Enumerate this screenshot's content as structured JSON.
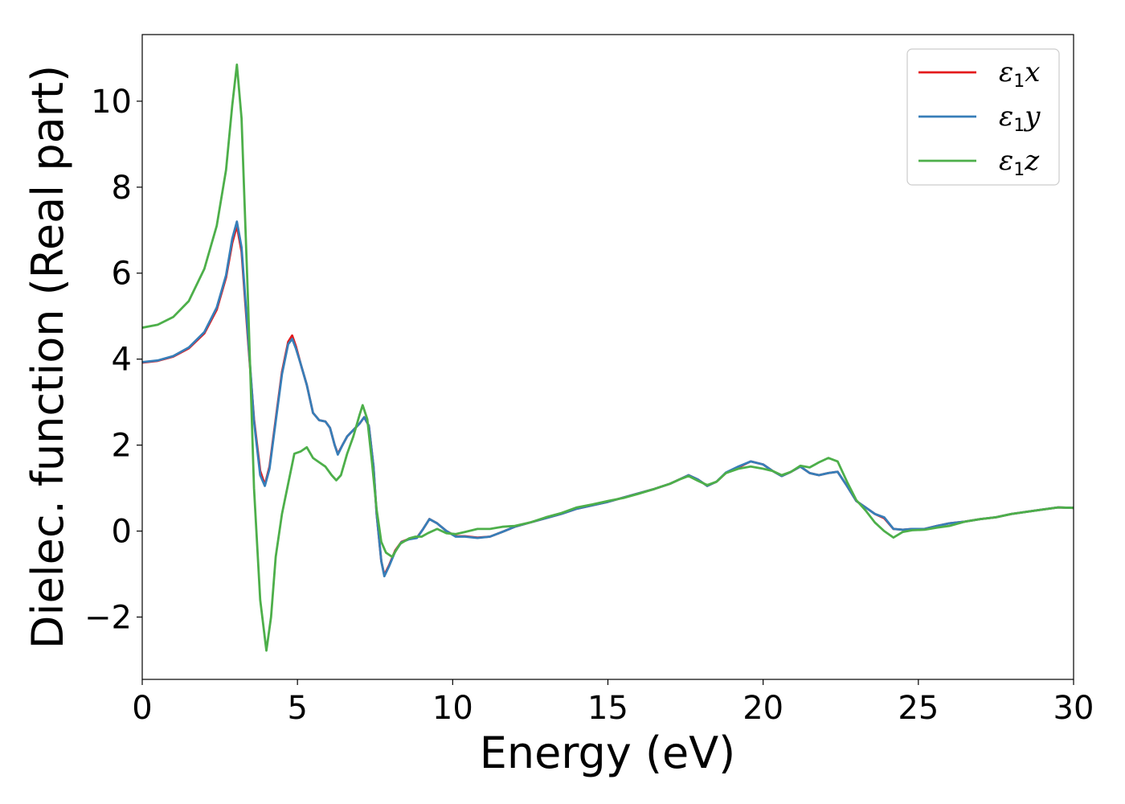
{
  "chart_data": {
    "type": "line",
    "title": "",
    "xlabel": "Energy (eV)",
    "ylabel": "Dielec. function (Real part)",
    "xlim": [
      0,
      30
    ],
    "ylim": [
      -3.45,
      11.55
    ],
    "xticks": [
      0,
      5,
      10,
      15,
      20,
      25,
      30
    ],
    "xtick_labels": [
      "0",
      "5",
      "10",
      "15",
      "20",
      "25",
      "30"
    ],
    "yticks": [
      -2,
      0,
      2,
      4,
      6,
      8,
      10
    ],
    "ytick_labels": [
      "−2",
      "0",
      "2",
      "4",
      "6",
      "8",
      "10"
    ],
    "grid": false,
    "legend_position": "top-right",
    "series": [
      {
        "name": "x",
        "legend": {
          "base": "ε",
          "sub": "1",
          "suffix": "x"
        },
        "color": "#e41a1c",
        "points": [
          [
            0,
            3.92
          ],
          [
            0.5,
            3.96
          ],
          [
            1,
            4.06
          ],
          [
            1.5,
            4.25
          ],
          [
            2,
            4.6
          ],
          [
            2.4,
            5.15
          ],
          [
            2.7,
            5.9
          ],
          [
            2.9,
            6.7
          ],
          [
            3.05,
            7.1
          ],
          [
            3.2,
            6.5
          ],
          [
            3.4,
            4.5
          ],
          [
            3.6,
            2.6
          ],
          [
            3.8,
            1.4
          ],
          [
            3.95,
            1.08
          ],
          [
            4.1,
            1.5
          ],
          [
            4.3,
            2.6
          ],
          [
            4.5,
            3.7
          ],
          [
            4.7,
            4.4
          ],
          [
            4.83,
            4.55
          ],
          [
            4.95,
            4.3
          ],
          [
            5.1,
            3.9
          ],
          [
            5.3,
            3.4
          ],
          [
            5.5,
            2.75
          ],
          [
            5.7,
            2.58
          ],
          [
            5.9,
            2.55
          ],
          [
            6.05,
            2.4
          ],
          [
            6.2,
            2.0
          ],
          [
            6.3,
            1.8
          ],
          [
            6.45,
            2.0
          ],
          [
            6.6,
            2.2
          ],
          [
            6.8,
            2.35
          ],
          [
            7.0,
            2.5
          ],
          [
            7.15,
            2.65
          ],
          [
            7.3,
            2.45
          ],
          [
            7.45,
            1.5
          ],
          [
            7.55,
            0.4
          ],
          [
            7.7,
            -0.7
          ],
          [
            7.8,
            -1.02
          ],
          [
            7.95,
            -0.8
          ],
          [
            8.15,
            -0.45
          ],
          [
            8.35,
            -0.25
          ],
          [
            8.6,
            -0.18
          ],
          [
            8.85,
            -0.15
          ],
          [
            9.05,
            0.05
          ],
          [
            9.25,
            0.28
          ],
          [
            9.5,
            0.18
          ],
          [
            9.8,
            0.0
          ],
          [
            10.1,
            -0.12
          ],
          [
            10.4,
            -0.12
          ],
          [
            10.8,
            -0.15
          ],
          [
            11.2,
            -0.13
          ],
          [
            11.6,
            -0.02
          ],
          [
            12,
            0.1
          ],
          [
            12.5,
            0.2
          ],
          [
            13,
            0.3
          ],
          [
            13.5,
            0.4
          ],
          [
            14,
            0.52
          ],
          [
            14.5,
            0.6
          ],
          [
            15,
            0.68
          ],
          [
            15.5,
            0.78
          ],
          [
            16,
            0.88
          ],
          [
            16.5,
            0.98
          ],
          [
            17,
            1.1
          ],
          [
            17.3,
            1.2
          ],
          [
            17.6,
            1.3
          ],
          [
            17.9,
            1.2
          ],
          [
            18.2,
            1.05
          ],
          [
            18.5,
            1.15
          ],
          [
            18.8,
            1.35
          ],
          [
            19.2,
            1.48
          ],
          [
            19.6,
            1.62
          ],
          [
            20,
            1.55
          ],
          [
            20.3,
            1.4
          ],
          [
            20.6,
            1.28
          ],
          [
            20.9,
            1.38
          ],
          [
            21.2,
            1.5
          ],
          [
            21.5,
            1.35
          ],
          [
            21.8,
            1.3
          ],
          [
            22.1,
            1.35
          ],
          [
            22.4,
            1.38
          ],
          [
            22.7,
            1.05
          ],
          [
            23,
            0.7
          ],
          [
            23.3,
            0.55
          ],
          [
            23.6,
            0.4
          ],
          [
            23.9,
            0.3
          ],
          [
            24.2,
            0.05
          ],
          [
            24.5,
            0.03
          ],
          [
            24.8,
            0.05
          ],
          [
            25.2,
            0.05
          ],
          [
            25.6,
            0.12
          ],
          [
            26,
            0.18
          ],
          [
            26.5,
            0.22
          ],
          [
            27,
            0.28
          ],
          [
            27.5,
            0.32
          ],
          [
            28,
            0.4
          ],
          [
            28.5,
            0.45
          ],
          [
            29,
            0.5
          ],
          [
            29.5,
            0.55
          ],
          [
            30,
            0.54
          ]
        ]
      },
      {
        "name": "y",
        "legend": {
          "base": "ε",
          "sub": "1",
          "suffix": "y"
        },
        "color": "#377eb8",
        "points": [
          [
            0,
            3.93
          ],
          [
            0.5,
            3.97
          ],
          [
            1,
            4.07
          ],
          [
            1.5,
            4.27
          ],
          [
            2,
            4.63
          ],
          [
            2.4,
            5.2
          ],
          [
            2.7,
            5.95
          ],
          [
            2.9,
            6.8
          ],
          [
            3.05,
            7.2
          ],
          [
            3.2,
            6.6
          ],
          [
            3.4,
            4.6
          ],
          [
            3.6,
            2.55
          ],
          [
            3.8,
            1.3
          ],
          [
            3.95,
            1.05
          ],
          [
            4.1,
            1.45
          ],
          [
            4.3,
            2.55
          ],
          [
            4.5,
            3.65
          ],
          [
            4.7,
            4.35
          ],
          [
            4.83,
            4.47
          ],
          [
            4.95,
            4.25
          ],
          [
            5.1,
            3.9
          ],
          [
            5.3,
            3.4
          ],
          [
            5.5,
            2.75
          ],
          [
            5.7,
            2.58
          ],
          [
            5.9,
            2.55
          ],
          [
            6.05,
            2.4
          ],
          [
            6.2,
            2.0
          ],
          [
            6.3,
            1.78
          ],
          [
            6.45,
            2.0
          ],
          [
            6.6,
            2.2
          ],
          [
            6.8,
            2.35
          ],
          [
            7.0,
            2.5
          ],
          [
            7.15,
            2.65
          ],
          [
            7.3,
            2.45
          ],
          [
            7.45,
            1.5
          ],
          [
            7.55,
            0.4
          ],
          [
            7.7,
            -0.7
          ],
          [
            7.8,
            -1.05
          ],
          [
            7.95,
            -0.82
          ],
          [
            8.15,
            -0.47
          ],
          [
            8.35,
            -0.26
          ],
          [
            8.6,
            -0.19
          ],
          [
            8.85,
            -0.16
          ],
          [
            9.05,
            0.05
          ],
          [
            9.25,
            0.28
          ],
          [
            9.5,
            0.18
          ],
          [
            9.8,
            0.0
          ],
          [
            10.1,
            -0.13
          ],
          [
            10.4,
            -0.13
          ],
          [
            10.8,
            -0.16
          ],
          [
            11.2,
            -0.13
          ],
          [
            11.6,
            -0.02
          ],
          [
            12,
            0.1
          ],
          [
            12.5,
            0.2
          ],
          [
            13,
            0.3
          ],
          [
            13.5,
            0.4
          ],
          [
            14,
            0.52
          ],
          [
            14.5,
            0.6
          ],
          [
            15,
            0.68
          ],
          [
            15.5,
            0.78
          ],
          [
            16,
            0.88
          ],
          [
            16.5,
            0.98
          ],
          [
            17,
            1.1
          ],
          [
            17.3,
            1.2
          ],
          [
            17.6,
            1.3
          ],
          [
            17.9,
            1.2
          ],
          [
            18.2,
            1.05
          ],
          [
            18.5,
            1.15
          ],
          [
            18.8,
            1.36
          ],
          [
            19.2,
            1.5
          ],
          [
            19.6,
            1.62
          ],
          [
            20,
            1.55
          ],
          [
            20.3,
            1.4
          ],
          [
            20.6,
            1.28
          ],
          [
            20.9,
            1.38
          ],
          [
            21.2,
            1.5
          ],
          [
            21.5,
            1.35
          ],
          [
            21.8,
            1.3
          ],
          [
            22.1,
            1.35
          ],
          [
            22.4,
            1.38
          ],
          [
            22.7,
            1.05
          ],
          [
            23,
            0.7
          ],
          [
            23.3,
            0.55
          ],
          [
            23.6,
            0.4
          ],
          [
            23.9,
            0.32
          ],
          [
            24.2,
            0.05
          ],
          [
            24.5,
            0.03
          ],
          [
            24.8,
            0.05
          ],
          [
            25.2,
            0.05
          ],
          [
            25.6,
            0.12
          ],
          [
            26,
            0.18
          ],
          [
            26.5,
            0.22
          ],
          [
            27,
            0.28
          ],
          [
            27.5,
            0.32
          ],
          [
            28,
            0.4
          ],
          [
            28.5,
            0.45
          ],
          [
            29,
            0.5
          ],
          [
            29.5,
            0.55
          ],
          [
            30,
            0.54
          ]
        ]
      },
      {
        "name": "z",
        "legend": {
          "base": "ε",
          "sub": "1",
          "suffix": "z"
        },
        "color": "#4daf4a",
        "points": [
          [
            0,
            4.73
          ],
          [
            0.5,
            4.8
          ],
          [
            1,
            4.98
          ],
          [
            1.5,
            5.35
          ],
          [
            2,
            6.1
          ],
          [
            2.4,
            7.1
          ],
          [
            2.7,
            8.4
          ],
          [
            2.9,
            9.9
          ],
          [
            3.05,
            10.85
          ],
          [
            3.2,
            9.6
          ],
          [
            3.4,
            5.5
          ],
          [
            3.6,
            1.0
          ],
          [
            3.8,
            -1.6
          ],
          [
            4.0,
            -2.78
          ],
          [
            4.15,
            -2.0
          ],
          [
            4.3,
            -0.6
          ],
          [
            4.5,
            0.4
          ],
          [
            4.7,
            1.1
          ],
          [
            4.9,
            1.8
          ],
          [
            5.1,
            1.85
          ],
          [
            5.3,
            1.95
          ],
          [
            5.5,
            1.7
          ],
          [
            5.7,
            1.6
          ],
          [
            5.9,
            1.5
          ],
          [
            6.1,
            1.3
          ],
          [
            6.25,
            1.18
          ],
          [
            6.4,
            1.3
          ],
          [
            6.6,
            1.8
          ],
          [
            6.8,
            2.2
          ],
          [
            7.0,
            2.7
          ],
          [
            7.1,
            2.93
          ],
          [
            7.25,
            2.6
          ],
          [
            7.4,
            1.6
          ],
          [
            7.55,
            0.5
          ],
          [
            7.7,
            -0.25
          ],
          [
            7.85,
            -0.5
          ],
          [
            8.05,
            -0.6
          ],
          [
            8.3,
            -0.3
          ],
          [
            8.6,
            -0.17
          ],
          [
            8.8,
            -0.13
          ],
          [
            9.0,
            -0.13
          ],
          [
            9.2,
            -0.05
          ],
          [
            9.5,
            0.05
          ],
          [
            9.8,
            -0.05
          ],
          [
            10.1,
            -0.07
          ],
          [
            10.4,
            -0.02
          ],
          [
            10.8,
            0.05
          ],
          [
            11.2,
            0.05
          ],
          [
            11.6,
            0.1
          ],
          [
            12,
            0.12
          ],
          [
            12.5,
            0.2
          ],
          [
            13,
            0.32
          ],
          [
            13.5,
            0.42
          ],
          [
            14,
            0.55
          ],
          [
            14.5,
            0.62
          ],
          [
            15,
            0.7
          ],
          [
            15.5,
            0.77
          ],
          [
            16,
            0.87
          ],
          [
            16.5,
            0.98
          ],
          [
            17,
            1.1
          ],
          [
            17.3,
            1.2
          ],
          [
            17.6,
            1.28
          ],
          [
            17.9,
            1.17
          ],
          [
            18.2,
            1.07
          ],
          [
            18.5,
            1.15
          ],
          [
            18.8,
            1.35
          ],
          [
            19.2,
            1.45
          ],
          [
            19.6,
            1.5
          ],
          [
            20,
            1.45
          ],
          [
            20.3,
            1.4
          ],
          [
            20.6,
            1.3
          ],
          [
            20.9,
            1.38
          ],
          [
            21.2,
            1.52
          ],
          [
            21.5,
            1.48
          ],
          [
            21.8,
            1.6
          ],
          [
            22.1,
            1.7
          ],
          [
            22.4,
            1.62
          ],
          [
            22.7,
            1.15
          ],
          [
            23,
            0.72
          ],
          [
            23.3,
            0.48
          ],
          [
            23.6,
            0.2
          ],
          [
            23.9,
            0.0
          ],
          [
            24.2,
            -0.15
          ],
          [
            24.5,
            -0.02
          ],
          [
            24.8,
            0.02
          ],
          [
            25.2,
            0.03
          ],
          [
            25.6,
            0.08
          ],
          [
            26,
            0.12
          ],
          [
            26.5,
            0.22
          ],
          [
            27,
            0.28
          ],
          [
            27.5,
            0.32
          ],
          [
            28,
            0.4
          ],
          [
            28.5,
            0.45
          ],
          [
            29,
            0.5
          ],
          [
            29.5,
            0.55
          ],
          [
            30,
            0.54
          ]
        ]
      }
    ]
  }
}
